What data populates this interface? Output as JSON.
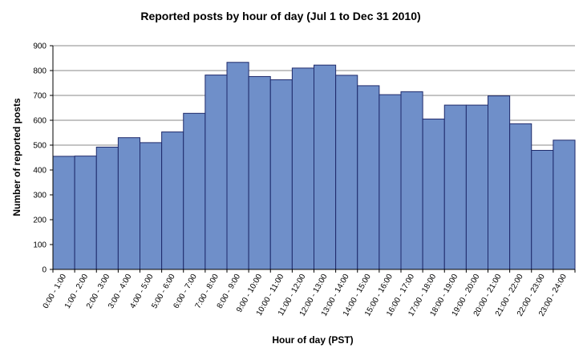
{
  "chart_data": {
    "type": "bar",
    "title": "Reported posts by hour of day (Jul 1 to Dec 31 2010)",
    "xlabel": "Hour of day (PST)",
    "ylabel": "Number of reported posts",
    "ylim": [
      0,
      900
    ],
    "yticks": [
      "0",
      "100",
      "200",
      "300",
      "400",
      "500",
      "600",
      "700",
      "800",
      "900"
    ],
    "grid": true,
    "legend": "none",
    "categories": [
      "0:00 - 1:00",
      "1:00 - 2:00",
      "2:00 - 3:00",
      "3:00 - 4:00",
      "4:00 - 5:00",
      "5:00 - 6:00",
      "6:00 - 7:00",
      "7:00 - 8:00",
      "8:00 - 9:00",
      "9:00 - 10:00",
      "10:00 - 11:00",
      "11:00 - 12:00",
      "12:00 - 13:00",
      "13:00 - 14:00",
      "14:00 - 15:00",
      "15:00 - 16:00",
      "16:00 - 17:00",
      "17:00 - 18:00",
      "18:00 - 19:00",
      "19:00 - 20:00",
      "20:00 - 21:00",
      "21:00 - 22:00",
      "22:00 - 23:00",
      "23:00 - 24:00"
    ],
    "values": [
      455,
      456,
      492,
      530,
      510,
      553,
      628,
      782,
      833,
      776,
      763,
      810,
      822,
      781,
      739,
      703,
      715,
      605,
      661,
      661,
      698,
      586,
      479,
      520
    ],
    "colors": {
      "bar_fill": "#6f8fc9",
      "bar_stroke": "#1f2a6b",
      "plot_background": "#ffffff",
      "gridline": "#8a8a8a"
    }
  }
}
